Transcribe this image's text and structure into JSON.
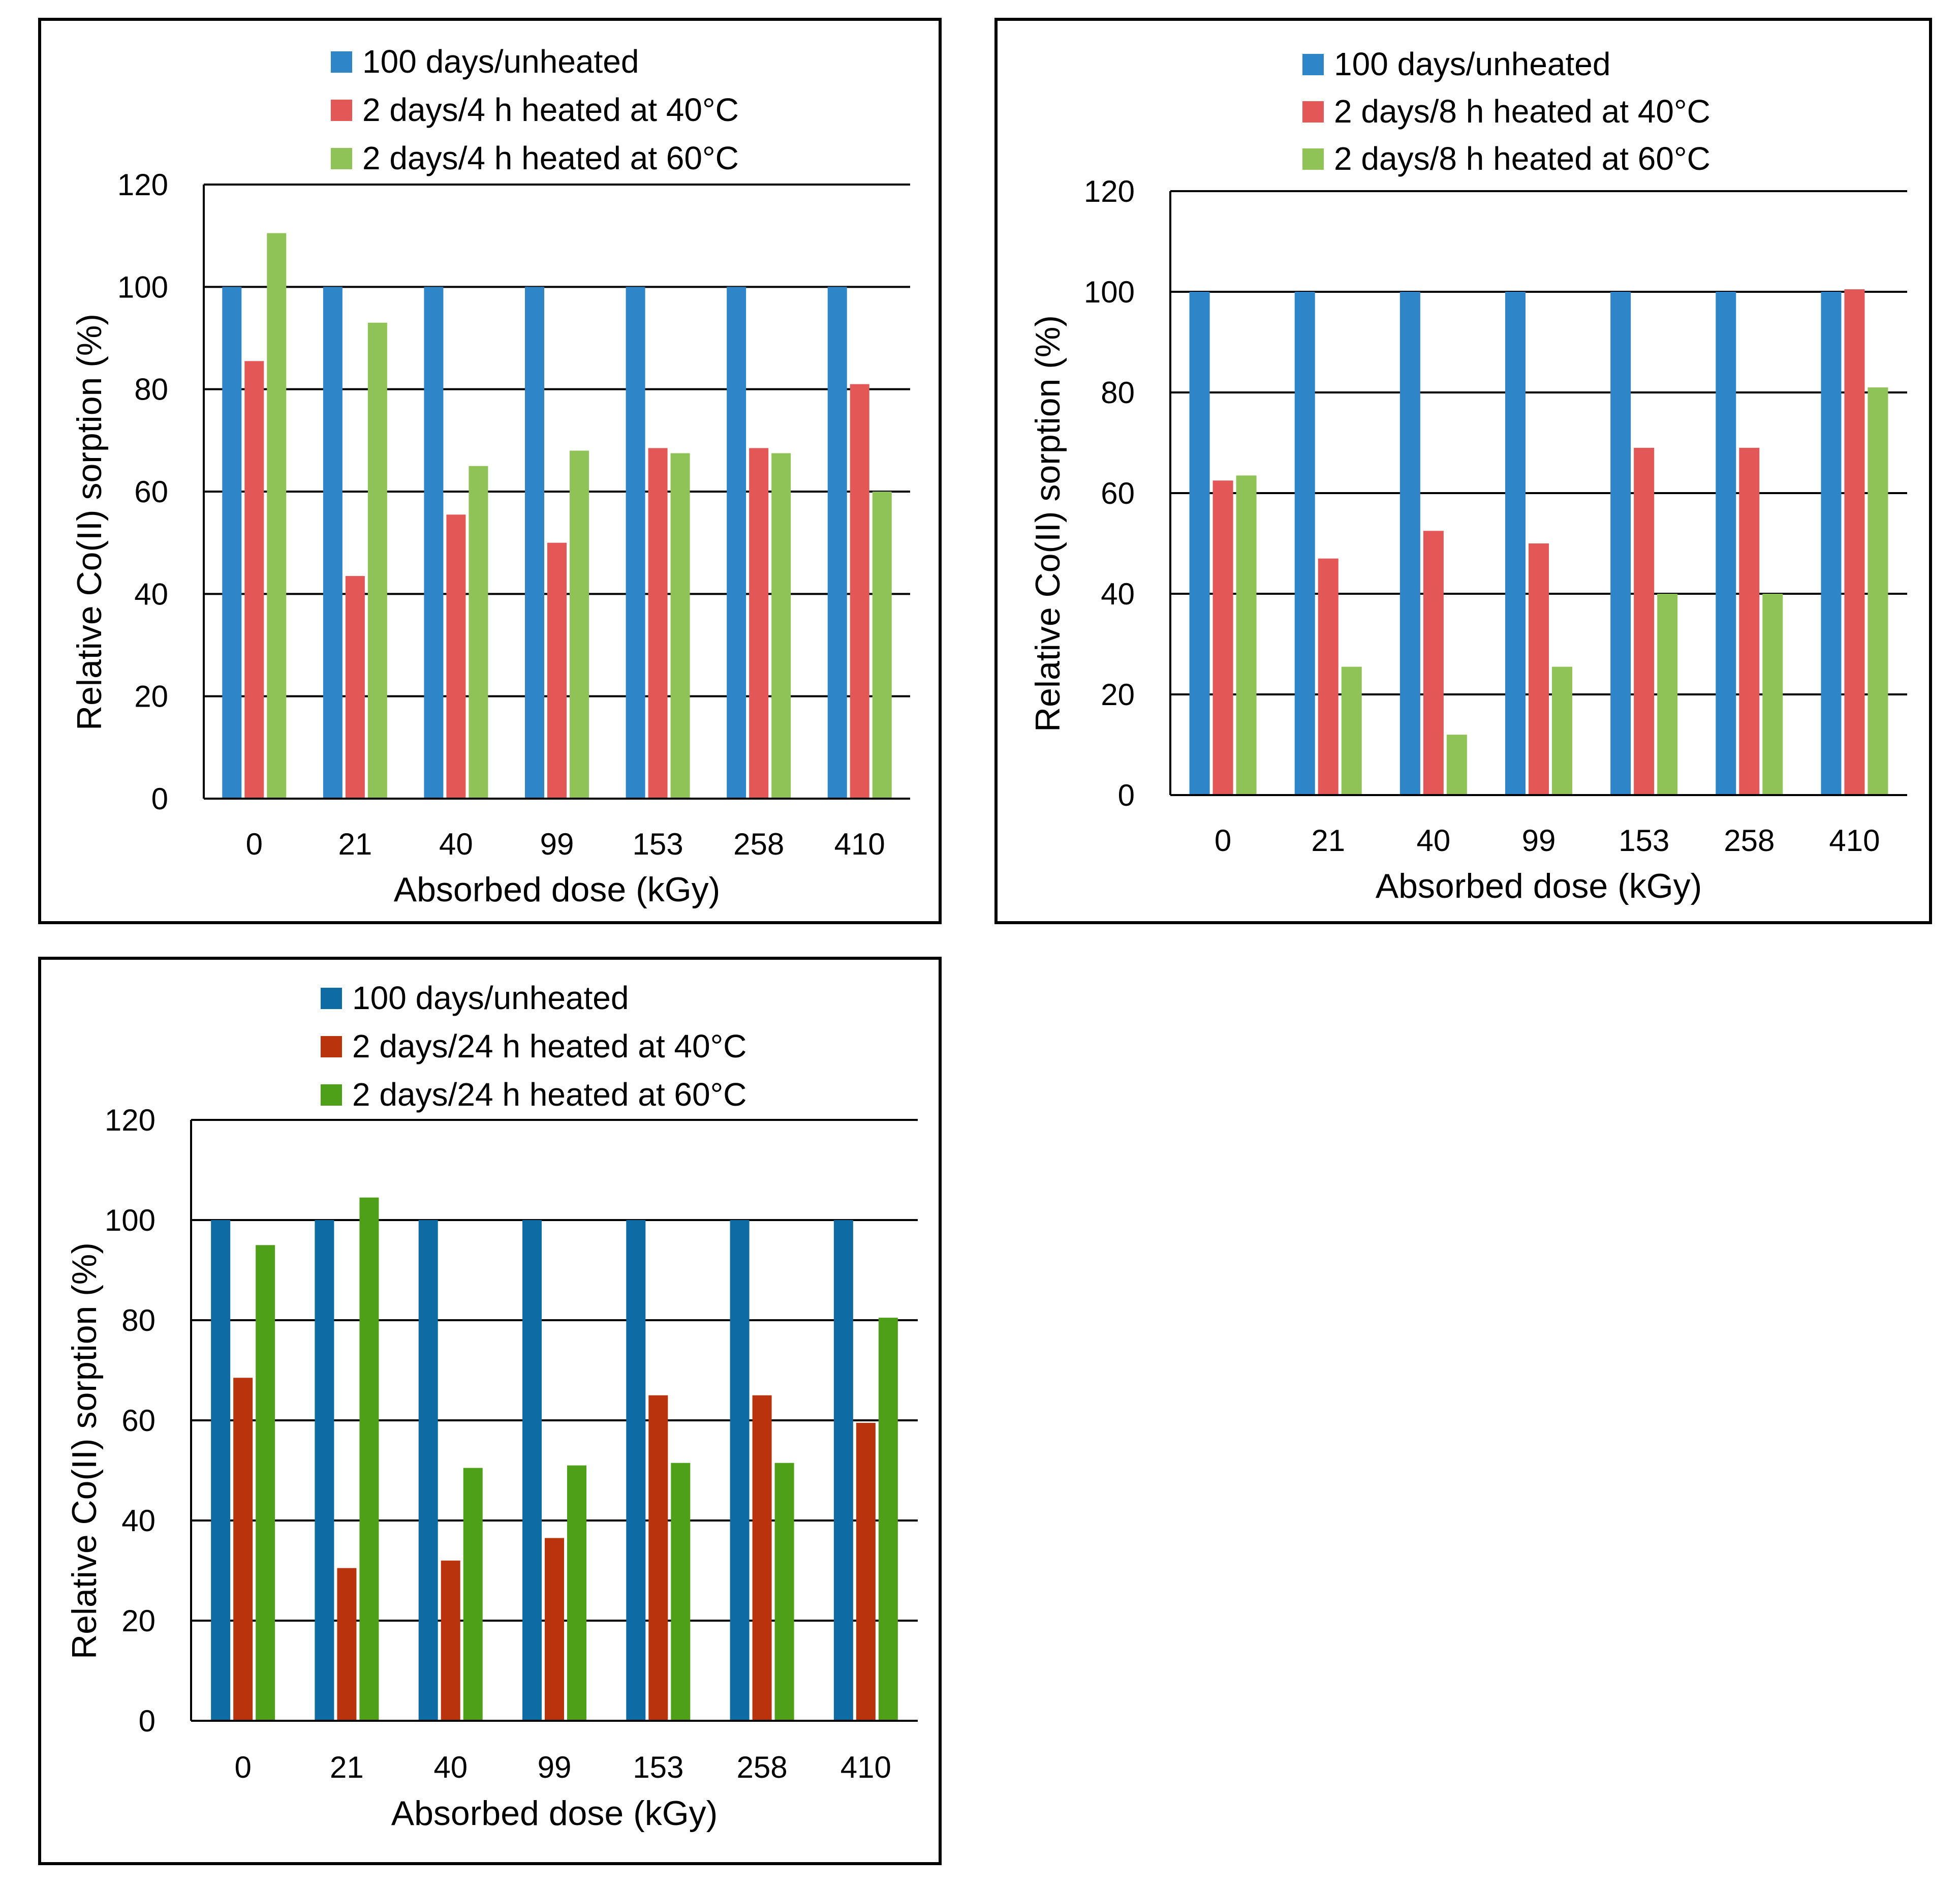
{
  "chart_data": [
    {
      "type": "bar",
      "title": "",
      "xlabel": "Absorbed dose (kGy)",
      "ylabel": "Relative Co(II) sorption (%)",
      "ylim": [
        0,
        120
      ],
      "yticks": [
        "0",
        "20",
        "40",
        "60",
        "80",
        "100",
        "120"
      ],
      "categories": [
        "0",
        "21",
        "40",
        "99",
        "153",
        "258",
        "410"
      ],
      "legend_position": "top",
      "grid": true,
      "series": [
        {
          "name": "100 days/unheated",
          "color": "#2E86C8",
          "values": [
            100,
            100,
            100,
            100,
            100,
            100,
            100
          ]
        },
        {
          "name": "2 days/4 h heated at 40°C",
          "color": "#E45757",
          "values": [
            85.5,
            43.5,
            55.5,
            50,
            68.5,
            68.5,
            81
          ]
        },
        {
          "name": "2 days/4 h heated at 60°C",
          "color": "#8FC357",
          "values": [
            110.5,
            93,
            65,
            68,
            67.5,
            67.5,
            60
          ]
        }
      ]
    },
    {
      "type": "bar",
      "title": "",
      "xlabel": "Absorbed dose (kGy)",
      "ylabel": "Relative Co(II) sorption (%)",
      "ylim": [
        0,
        120
      ],
      "yticks": [
        "0",
        "20",
        "40",
        "60",
        "80",
        "100",
        "120"
      ],
      "categories": [
        "0",
        "21",
        "40",
        "99",
        "153",
        "258",
        "410"
      ],
      "legend_position": "top",
      "grid": true,
      "series": [
        {
          "name": "100 days/unheated",
          "color": "#2E86C8",
          "values": [
            100,
            100,
            100,
            100,
            100,
            100,
            100
          ]
        },
        {
          "name": "2 days/8 h heated at 40°C",
          "color": "#E45757",
          "values": [
            62.5,
            47,
            52.5,
            50,
            69,
            69,
            100.5
          ]
        },
        {
          "name": "2 days/8 h heated at 60°C",
          "color": "#8FC357",
          "values": [
            63.5,
            25.5,
            12,
            25.5,
            40,
            40,
            81
          ]
        }
      ]
    },
    {
      "type": "bar",
      "title": "",
      "xlabel": "Absorbed dose (kGy)",
      "ylabel": "Relative Co(II) sorption (%)",
      "ylim": [
        0,
        120
      ],
      "yticks": [
        "0",
        "20",
        "40",
        "60",
        "80",
        "100",
        "120"
      ],
      "categories": [
        "0",
        "21",
        "40",
        "99",
        "153",
        "258",
        "410"
      ],
      "legend_position": "top",
      "grid": true,
      "series": [
        {
          "name": "100 days/unheated",
          "color": "#0F6BA3",
          "values": [
            100,
            100,
            100,
            100,
            100,
            100,
            100
          ]
        },
        {
          "name": "2 days/24 h heated at 40°C",
          "color": "#B9340C",
          "values": [
            68.5,
            30.5,
            32,
            36.5,
            65,
            65,
            59.5
          ]
        },
        {
          "name": "2 days/24 h heated at 60°C",
          "color": "#4FA019",
          "values": [
            95,
            104.5,
            50.5,
            51,
            51.5,
            51.5,
            80.5
          ]
        }
      ]
    }
  ]
}
